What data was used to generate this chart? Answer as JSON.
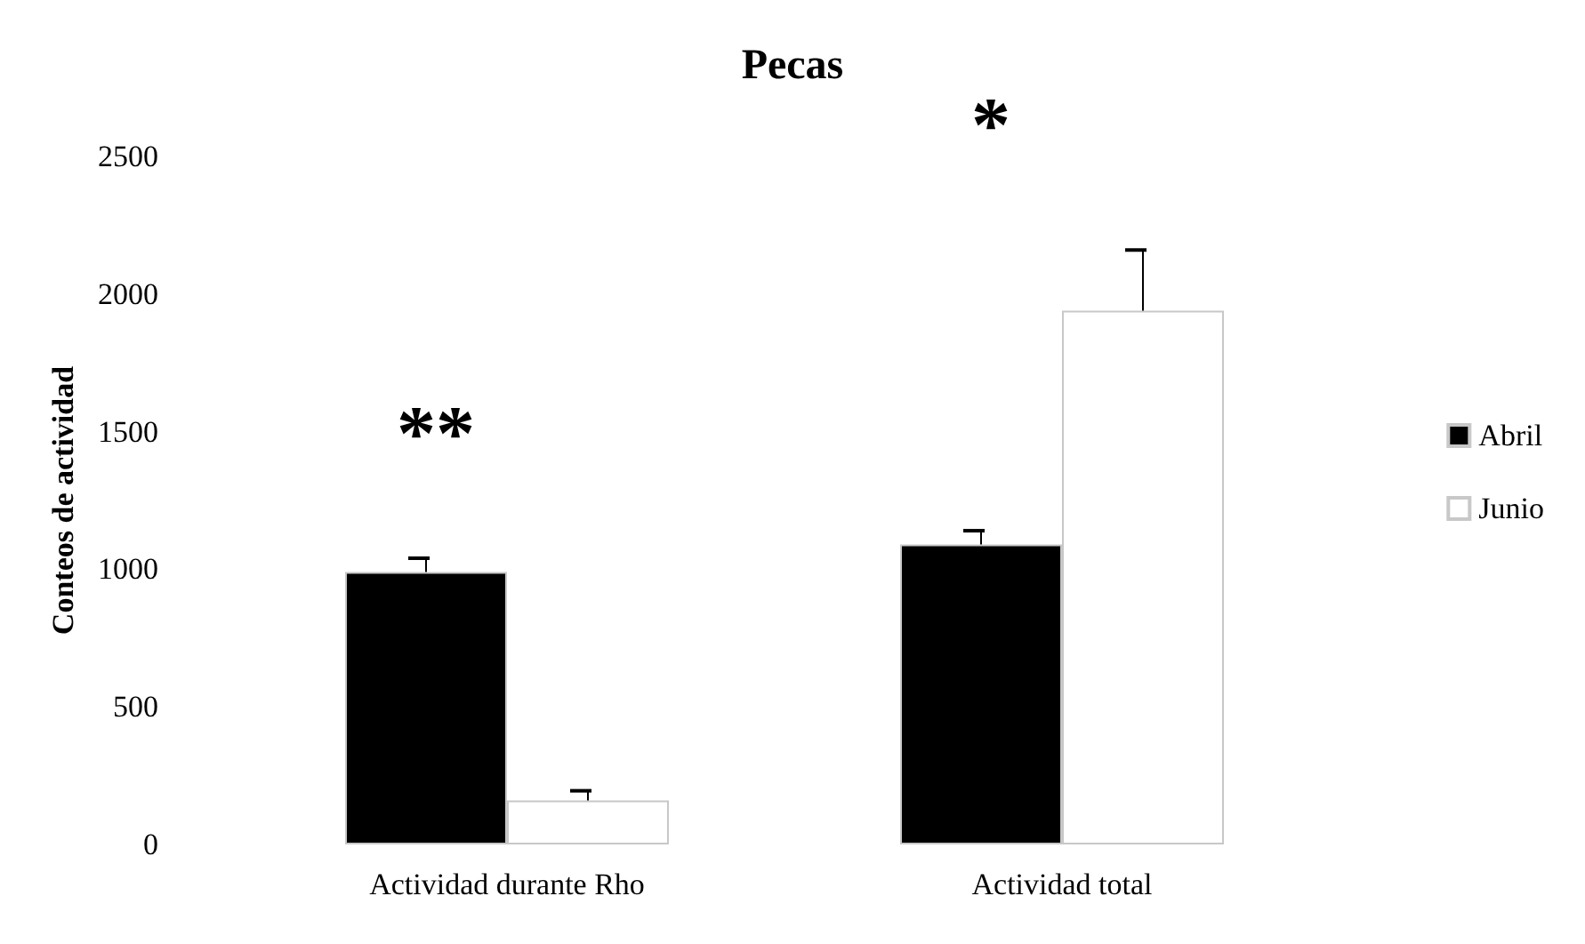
{
  "chart_data": {
    "type": "bar",
    "title": "Pecas",
    "ylabel": "Conteos de actividad",
    "categories": [
      "Actividad durante Rho",
      "Actividad total"
    ],
    "series": [
      {
        "name": "Abril",
        "color": "#000000",
        "values": [
          990,
          1090
        ],
        "errors": [
          [
            990,
            1040
          ],
          [
            1090,
            1140
          ]
        ]
      },
      {
        "name": "Junio",
        "color": "#ffffff",
        "values": [
          160,
          1940
        ],
        "errors": [
          [
            160,
            195
          ],
          [
            1940,
            2160
          ]
        ]
      }
    ],
    "ylim": [
      0,
      2500
    ],
    "yticks": [
      0,
      500,
      1000,
      1500,
      2000,
      2500
    ],
    "annotations": [
      "**",
      "*"
    ],
    "legend": "right",
    "grid": false
  }
}
